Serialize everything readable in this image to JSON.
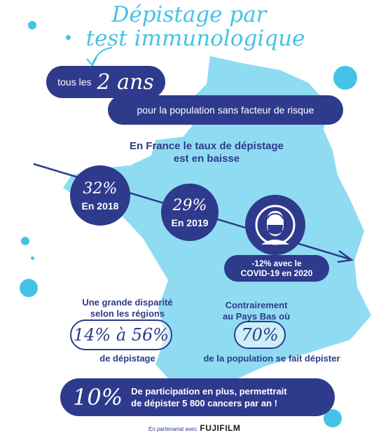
{
  "title": {
    "line1": "Dépistage par",
    "line2": "test immunologique"
  },
  "frequency": {
    "prefix": "tous les",
    "value": "2 ans",
    "population": "pour la population sans facteur de risque"
  },
  "trend": {
    "heading_line1": "En France le taux de dépistage",
    "heading_line2": "est en baisse",
    "rate_2018": {
      "value": "32%",
      "year": "En 2018"
    },
    "rate_2019": {
      "value": "29%",
      "year": "En 2019"
    },
    "covid": {
      "line1": "-12% avec le",
      "line2": "COVID-19 en 2020"
    }
  },
  "disparity": {
    "line1": "Une grande disparité",
    "line2": "selon les régions",
    "range": "14% à 56%",
    "suffix": "de dépistage"
  },
  "netherlands": {
    "line1": "Contrairement",
    "line2": "au Pays Bas où",
    "value": "70%",
    "suffix": "de la population se fait dépister"
  },
  "participation": {
    "value": "10%",
    "line1": "De participation en plus, permettrait",
    "line2_prefix": "de",
    "line2_bold": "dépister 5 800 cancers par an !"
  },
  "partner": {
    "text": "En partenariat avec",
    "brand": "FUJIFILM"
  },
  "colors": {
    "navy": "#2e3a8c",
    "cyan": "#45c3e6",
    "map": "#8fdcf2"
  }
}
